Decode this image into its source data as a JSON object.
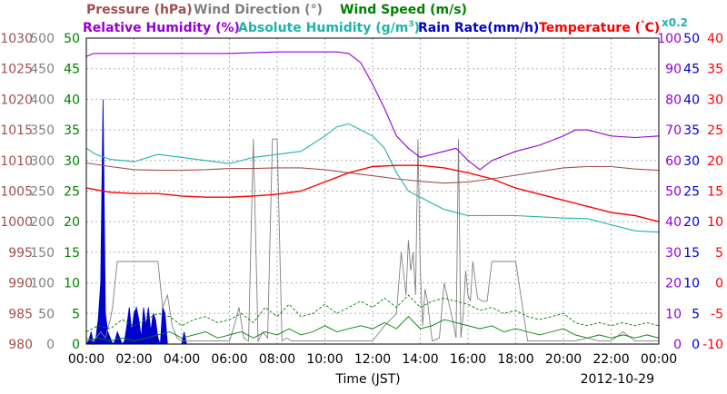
{
  "chart_data": {
    "type": "line",
    "xlabel": "Time (JST)",
    "date_label": "2012-10-29",
    "x_ticks": [
      "00:00",
      "02:00",
      "04:00",
      "06:00",
      "08:00",
      "10:00",
      "12:00",
      "14:00",
      "16:00",
      "18:00",
      "20:00",
      "22:00",
      "00:00"
    ],
    "x_range_hours": [
      0,
      24
    ],
    "colors": {
      "pressure": "#a05050",
      "wind_direction": "#808080",
      "wind_speed": "#008000",
      "relative_humidity": "#9400d3",
      "absolute_humidity": "#20b2aa",
      "rain_rate": "#0000cd",
      "temperature": "#ff0000",
      "grid": "#b0b0b0"
    },
    "legend": {
      "pressure": "Pressure (hPa)",
      "wind_direction": "Wind Direction (°)",
      "wind_speed": "Wind Speed (m/s)",
      "relative_humidity": "Relative Humidity (%)",
      "absolute_humidity_prefix": "Absolute Humidity (g/m",
      "absolute_humidity_sup": "3",
      "absolute_humidity_suffix": ")",
      "rain_rate": "Rain Rate(mm/h)",
      "temperature_prefix": "Temperature (",
      "temperature_deg": "°",
      "temperature_suffix": "C)",
      "scale_note": "x0.2"
    },
    "axes": {
      "pressure": {
        "range": [
          980,
          1030
        ],
        "ticks": [
          "980",
          "985",
          "990",
          "995",
          "1000",
          "1005",
          "1010",
          "1015",
          "1020",
          "1025",
          "1030"
        ]
      },
      "wind_direction": {
        "range": [
          0,
          500
        ],
        "ticks": [
          "0",
          "50",
          "100",
          "150",
          "200",
          "250",
          "300",
          "350",
          "400",
          "450",
          "500"
        ]
      },
      "wind_speed": {
        "range": [
          0,
          50
        ],
        "ticks": [
          "0",
          "5",
          "10",
          "15",
          "20",
          "25",
          "30",
          "35",
          "40",
          "45",
          "50"
        ]
      },
      "relative_humidity": {
        "range": [
          0,
          100
        ],
        "ticks": [
          "0",
          "10",
          "20",
          "30",
          "40",
          "50",
          "60",
          "70",
          "80",
          "90",
          "100"
        ]
      },
      "rain_rate": {
        "range": [
          0,
          50
        ],
        "ticks": [
          "0",
          "5",
          "10",
          "15",
          "20",
          "25",
          "30",
          "35",
          "40",
          "45",
          "50"
        ]
      },
      "temperature": {
        "range": [
          -10,
          40
        ],
        "ticks": [
          "-10",
          "-5",
          "0",
          "5",
          "10",
          "15",
          "20",
          "25",
          "30",
          "35",
          "40"
        ]
      }
    },
    "series": {
      "pressure": {
        "x": [
          0,
          1,
          2,
          3,
          4,
          5,
          6,
          7,
          8,
          9,
          10,
          11,
          12,
          13,
          14,
          15,
          16,
          17,
          18,
          19,
          20,
          21,
          22,
          23,
          24
        ],
        "y": [
          1009.6,
          1009,
          1008.5,
          1008.4,
          1008.4,
          1008.5,
          1008.7,
          1008.7,
          1008.8,
          1008.8,
          1008.5,
          1008,
          1007.5,
          1007,
          1006.6,
          1006.3,
          1006.5,
          1007,
          1007.6,
          1008.2,
          1008.8,
          1009,
          1009,
          1008.6,
          1008.4
        ]
      },
      "absolute_humidity_scaled": {
        "x": [
          0,
          0.4,
          1,
          2,
          3,
          4,
          5,
          6,
          7,
          8,
          9,
          10,
          10.5,
          11,
          11.5,
          12,
          12.5,
          13,
          13.5,
          14,
          15,
          16,
          17,
          18,
          19,
          20,
          21,
          22,
          23,
          24
        ],
        "y": [
          32,
          31,
          30.2,
          29.8,
          31,
          30.5,
          30,
          29.5,
          30.5,
          31,
          31.5,
          34,
          35.5,
          36,
          35,
          34,
          32,
          28,
          25,
          24,
          22,
          21,
          21,
          21,
          20.8,
          20.6,
          20.5,
          19.5,
          18.5,
          18.3
        ]
      },
      "relative_humidity": {
        "x": [
          0,
          0.3,
          1,
          2,
          4,
          6,
          8,
          9,
          10,
          10.5,
          11,
          11.5,
          12,
          12.5,
          13,
          13.5,
          14,
          15,
          15.5,
          16,
          16.5,
          17,
          18,
          19,
          20,
          20.5,
          21,
          22,
          23,
          24
        ],
        "y": [
          94,
          95,
          95,
          95,
          95,
          95,
          95.5,
          95.5,
          95.5,
          95.5,
          95,
          92,
          85,
          77,
          68,
          64,
          61,
          63,
          64,
          60,
          57,
          60,
          63,
          65,
          68,
          70,
          70,
          68,
          67.5,
          68
        ]
      },
      "temperature": {
        "x": [
          0,
          1,
          2,
          3,
          4,
          5,
          6,
          7,
          8,
          9,
          10,
          11,
          12,
          13,
          14,
          15,
          16,
          17,
          18,
          19,
          20,
          21,
          22,
          23,
          24
        ],
        "y": [
          15.5,
          14.8,
          14.6,
          14.6,
          14.2,
          14,
          14,
          14.2,
          14.5,
          15,
          16.5,
          18,
          19,
          19.2,
          19.2,
          18.8,
          18,
          17,
          15.5,
          14.5,
          13.5,
          12.5,
          11.5,
          11,
          10
        ]
      },
      "wind_direction": {
        "x": [
          0,
          0.3,
          0.6,
          0.8,
          1.0,
          1.1,
          1.2,
          1.3,
          1.6,
          2.0,
          2.5,
          3.0,
          3.2,
          3.4,
          3.6,
          3.8,
          4.0,
          6.0,
          6.2,
          6.4,
          6.6,
          6.8,
          7.0,
          7.2,
          7.4,
          7.6,
          7.8,
          8.0,
          8.2,
          8.4,
          8.6,
          10.5,
          12.0,
          12.5,
          13.0,
          13.2,
          13.4,
          13.5,
          13.6,
          13.7,
          13.8,
          13.9,
          14.0,
          14.1,
          14.2,
          14.3,
          14.5,
          14.8,
          15.0,
          15.3,
          15.5,
          15.6,
          15.7,
          15.8,
          15.9,
          16.0,
          16.1,
          16.2,
          16.4,
          16.6,
          16.8,
          17.0,
          17.2,
          17.5,
          17.8,
          18.0,
          18.5,
          20.0,
          20.5,
          21.0,
          21.5,
          22.0,
          22.5,
          23.0,
          23.5,
          24.0
        ],
        "y": [
          10,
          5,
          20,
          10,
          40,
          60,
          100,
          135,
          135,
          135,
          135,
          135,
          60,
          80,
          30,
          10,
          5,
          5,
          30,
          60,
          10,
          5,
          335,
          5,
          20,
          10,
          335,
          335,
          5,
          10,
          5,
          5,
          5,
          30,
          50,
          150,
          80,
          170,
          120,
          150,
          80,
          335,
          120,
          30,
          90,
          70,
          5,
          10,
          100,
          50,
          10,
          335,
          10,
          50,
          120,
          80,
          70,
          135,
          75,
          70,
          70,
          135,
          135,
          135,
          135,
          135,
          5,
          5,
          5,
          10,
          5,
          5,
          20,
          5,
          5,
          5
        ]
      },
      "rain_rate": {
        "x": [
          0,
          0.1,
          0.2,
          0.3,
          0.4,
          0.5,
          0.6,
          0.7,
          0.8,
          0.9,
          1.0,
          1.1,
          1.2,
          1.3,
          1.4,
          1.5,
          1.6,
          1.7,
          1.8,
          1.9,
          2.0,
          2.1,
          2.2,
          2.3,
          2.4,
          2.5,
          2.6,
          2.7,
          2.8,
          2.9,
          3.0,
          3.1,
          3.2,
          3.3,
          3.4,
          3.5,
          3.6,
          3.7,
          3.8,
          3.9,
          4.0,
          4.1,
          4.2
        ],
        "y": [
          0,
          0.5,
          2,
          0,
          1,
          4,
          10,
          40,
          5,
          2,
          1,
          0,
          0.5,
          2,
          1,
          0,
          0.5,
          3,
          6,
          2,
          5,
          6,
          4,
          1,
          6,
          3,
          6,
          2,
          5,
          4,
          1,
          0,
          6,
          5,
          0,
          0,
          0,
          0,
          0,
          0,
          0,
          2,
          0
        ]
      },
      "wind_speed": {
        "x": [
          0,
          0.5,
          1,
          1.5,
          2,
          2.5,
          3,
          3.5,
          4,
          4.5,
          5,
          5.5,
          6,
          6.5,
          7,
          7.5,
          8,
          8.5,
          9,
          9.5,
          10,
          10.5,
          11,
          11.5,
          12,
          12.5,
          13,
          13.5,
          14,
          14.5,
          15,
          15.5,
          16,
          16.5,
          17,
          17.5,
          18,
          18.5,
          19,
          19.5,
          20,
          20.5,
          21,
          21.5,
          22,
          22.5,
          23,
          23.5,
          24
        ],
        "y": [
          0.5,
          1,
          0.5,
          1,
          0.5,
          1,
          1.5,
          2,
          1,
          1.5,
          2,
          1,
          1.5,
          2,
          1,
          2,
          1.5,
          2.5,
          1.5,
          2,
          3,
          2,
          2.5,
          3,
          2.5,
          3.5,
          2.5,
          4.5,
          2.5,
          3,
          4,
          3.5,
          3,
          2.5,
          3,
          2,
          2.5,
          2,
          1.5,
          2,
          2.5,
          1.5,
          1,
          1.5,
          1,
          1.5,
          1,
          1.5,
          1
        ]
      },
      "wind_speed_gust": {
        "x": [
          0,
          0.5,
          1,
          1.5,
          2,
          2.5,
          3,
          3.5,
          4,
          4.5,
          5,
          5.5,
          6,
          6.5,
          7,
          7.5,
          8,
          8.5,
          9,
          9.5,
          10,
          10.5,
          11,
          11.5,
          12,
          12.5,
          13,
          13.5,
          14,
          14.5,
          15,
          15.5,
          16,
          16.5,
          17,
          17.5,
          18,
          18.5,
          19,
          19.5,
          20,
          20.5,
          21,
          21.5,
          22,
          22.5,
          23,
          23.5,
          24
        ],
        "y": [
          2,
          3,
          2.5,
          4,
          3,
          4,
          5,
          4.5,
          3,
          4,
          4.5,
          3.5,
          4,
          5,
          3.5,
          6,
          4.5,
          6.5,
          4.5,
          5,
          6.5,
          5,
          6,
          7,
          6,
          7.5,
          6,
          8,
          6,
          7,
          7.5,
          7,
          6.5,
          5.5,
          6,
          5,
          5.5,
          4.5,
          4,
          4.5,
          5,
          3.5,
          3,
          3.5,
          3,
          3.5,
          3,
          3.5,
          3
        ]
      }
    }
  }
}
